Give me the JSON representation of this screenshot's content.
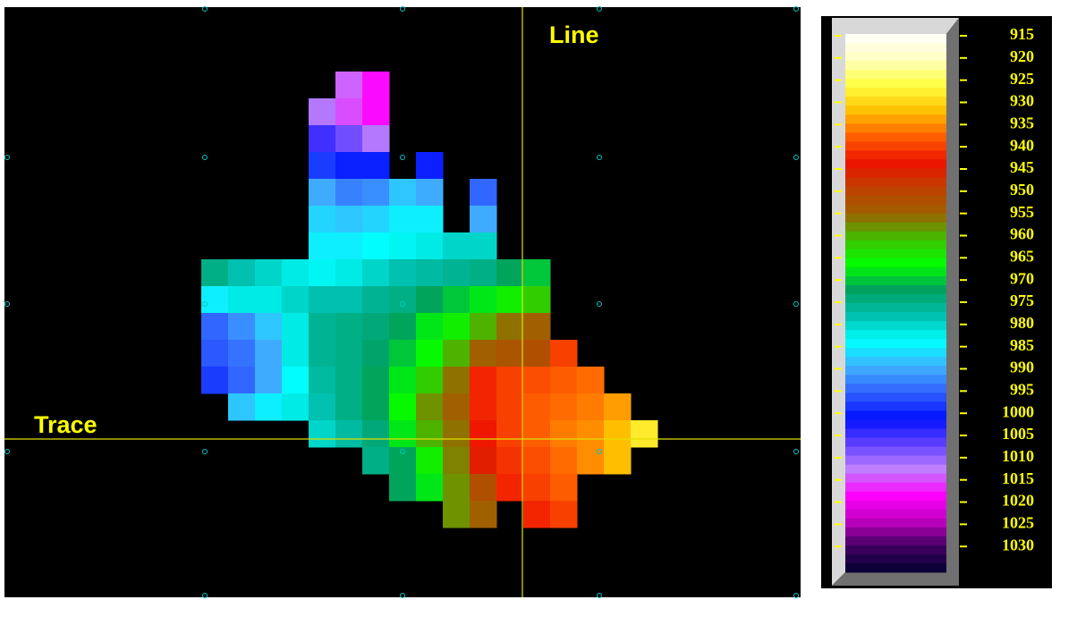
{
  "chart_data": {
    "type": "heatmap",
    "labels": [
      "Line",
      "Trace"
    ],
    "colorscale": [
      "#ffffff",
      "#ffffc0",
      "#ffff40",
      "#ffc000",
      "#ff6000",
      "#ee1100",
      "#c04000",
      "#a06000",
      "#40c000",
      "#00ff00",
      "#00a060",
      "#00c0b0",
      "#00ffff",
      "#40b0ff",
      "#3060ff",
      "#0010ff",
      "#6040ff",
      "#c080ff",
      "#ff00ff",
      "#c000c0",
      "#400060",
      "#000030"
    ],
    "zlim": [
      914.6,
      1035.8
    ],
    "zticks": [
      915,
      920,
      925,
      930,
      935,
      940,
      945,
      950,
      955,
      960,
      965,
      970,
      975,
      980,
      985,
      990,
      995,
      1000,
      1005,
      1010,
      1015,
      1020,
      1025,
      1030
    ],
    "z": [
      [
        null,
        null,
        null,
        null,
        null,
        1014,
        1018,
        null,
        null,
        null,
        null,
        null,
        null,
        null,
        null,
        null,
        null
      ],
      [
        null,
        null,
        null,
        null,
        1012,
        1015,
        1018,
        null,
        null,
        null,
        null,
        null,
        null,
        null,
        null,
        null,
        null
      ],
      [
        null,
        null,
        null,
        null,
        1005,
        1008,
        1012,
        null,
        null,
        null,
        null,
        null,
        null,
        null,
        null,
        null,
        null
      ],
      [
        null,
        null,
        null,
        null,
        998,
        1000,
        1000,
        null,
        1000,
        null,
        null,
        null,
        null,
        null,
        null,
        null,
        null
      ],
      [
        null,
        null,
        null,
        null,
        990,
        993,
        992,
        988,
        990,
        null,
        995,
        null,
        null,
        null,
        null,
        null,
        null
      ],
      [
        null,
        null,
        null,
        null,
        987,
        988,
        987,
        985,
        985,
        null,
        990,
        null,
        null,
        null,
        null,
        null,
        null
      ],
      [
        null,
        null,
        null,
        null,
        985,
        985,
        984,
        983,
        982,
        980,
        980,
        null,
        null,
        null,
        null,
        null,
        null
      ],
      [
        975,
        978,
        980,
        982,
        983,
        982,
        980,
        978,
        977,
        976,
        975,
        972,
        970,
        null,
        null,
        null,
        null
      ],
      [
        985,
        982,
        982,
        980,
        978,
        978,
        976,
        975,
        972,
        970,
        968,
        965,
        962,
        null,
        null,
        null,
        null
      ],
      [
        995,
        992,
        988,
        982,
        976,
        975,
        974,
        972,
        968,
        965,
        960,
        956,
        955,
        null,
        null,
        null,
        null
      ],
      [
        996,
        994,
        990,
        982,
        976,
        975,
        973,
        970,
        966,
        960,
        955,
        953,
        952,
        940,
        null,
        null,
        null
      ],
      [
        998,
        995,
        990,
        984,
        977,
        975,
        972,
        968,
        962,
        956,
        942,
        940,
        939,
        938,
        937,
        null,
        null
      ],
      [
        null,
        988,
        985,
        982,
        978,
        975,
        972,
        966,
        958,
        955,
        942,
        940,
        938,
        937,
        936,
        934,
        null
      ],
      [
        null,
        null,
        null,
        null,
        980,
        977,
        974,
        968,
        960,
        956,
        943,
        940,
        938,
        936,
        935,
        932,
        928
      ],
      [
        null,
        null,
        null,
        null,
        null,
        null,
        975,
        972,
        965,
        957,
        945,
        941,
        939,
        937,
        935,
        932,
        null
      ],
      [
        null,
        null,
        null,
        null,
        null,
        null,
        null,
        972,
        968,
        958,
        952,
        942,
        940,
        938,
        null,
        null,
        null
      ],
      [
        null,
        null,
        null,
        null,
        null,
        null,
        null,
        null,
        null,
        958,
        955,
        null,
        942,
        940,
        null,
        null,
        null
      ]
    ]
  }
}
